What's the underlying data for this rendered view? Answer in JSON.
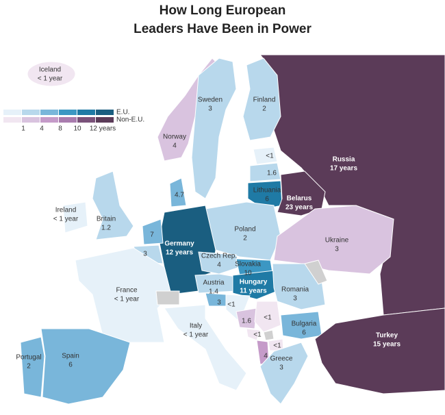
{
  "title": [
    "How Long European",
    "Leaders Have Been in Power"
  ],
  "legend": {
    "eu": "E.U.",
    "non_eu": "Non-E.U.",
    "ticks": [
      "1",
      "4",
      "8",
      "10",
      "12 years"
    ]
  },
  "countries": [
    {
      "name": "Iceland",
      "value": "< 1 year"
    },
    {
      "name": "Sweden",
      "value": "3"
    },
    {
      "name": "Finland",
      "value": "2"
    },
    {
      "name": "Norway",
      "value": "4"
    },
    {
      "name": "Russia",
      "value": "17 years"
    },
    {
      "value": "<1"
    },
    {
      "value": "1.6"
    },
    {
      "name": "Lithuania",
      "value": "6"
    },
    {
      "name": "Belarus",
      "value": "23 years"
    },
    {
      "value": "4.7"
    },
    {
      "name": "Ireland",
      "value": "< 1 year"
    },
    {
      "name": "Britain",
      "value": "1.2"
    },
    {
      "name": "Poland",
      "value": "2"
    },
    {
      "value": "7"
    },
    {
      "name": "Germany",
      "value": "12 years"
    },
    {
      "value": "3"
    },
    {
      "name": "Czech Rep.",
      "value": "4"
    },
    {
      "name": "Slovakia",
      "value": "10"
    },
    {
      "name": "Austria",
      "value": "1.4"
    },
    {
      "name": "Hungary",
      "value": "11 years"
    },
    {
      "name": "Ukraine",
      "value": "3"
    },
    {
      "name": "Romania",
      "value": "3"
    },
    {
      "name": "France",
      "value": "< 1 year"
    },
    {
      "value": "3"
    },
    {
      "value": "<1"
    },
    {
      "value": "1.6"
    },
    {
      "value": "<1"
    },
    {
      "value": "<1"
    },
    {
      "value": "<1"
    },
    {
      "value": "4"
    },
    {
      "name": "Bulgaria",
      "value": "6"
    },
    {
      "name": "Greece",
      "value": "3"
    },
    {
      "name": "Turkey",
      "value": "15 years"
    },
    {
      "name": "Italy",
      "value": "< 1 year"
    },
    {
      "name": "Portugal",
      "value": "2"
    },
    {
      "name": "Spain",
      "value": "6"
    }
  ]
}
